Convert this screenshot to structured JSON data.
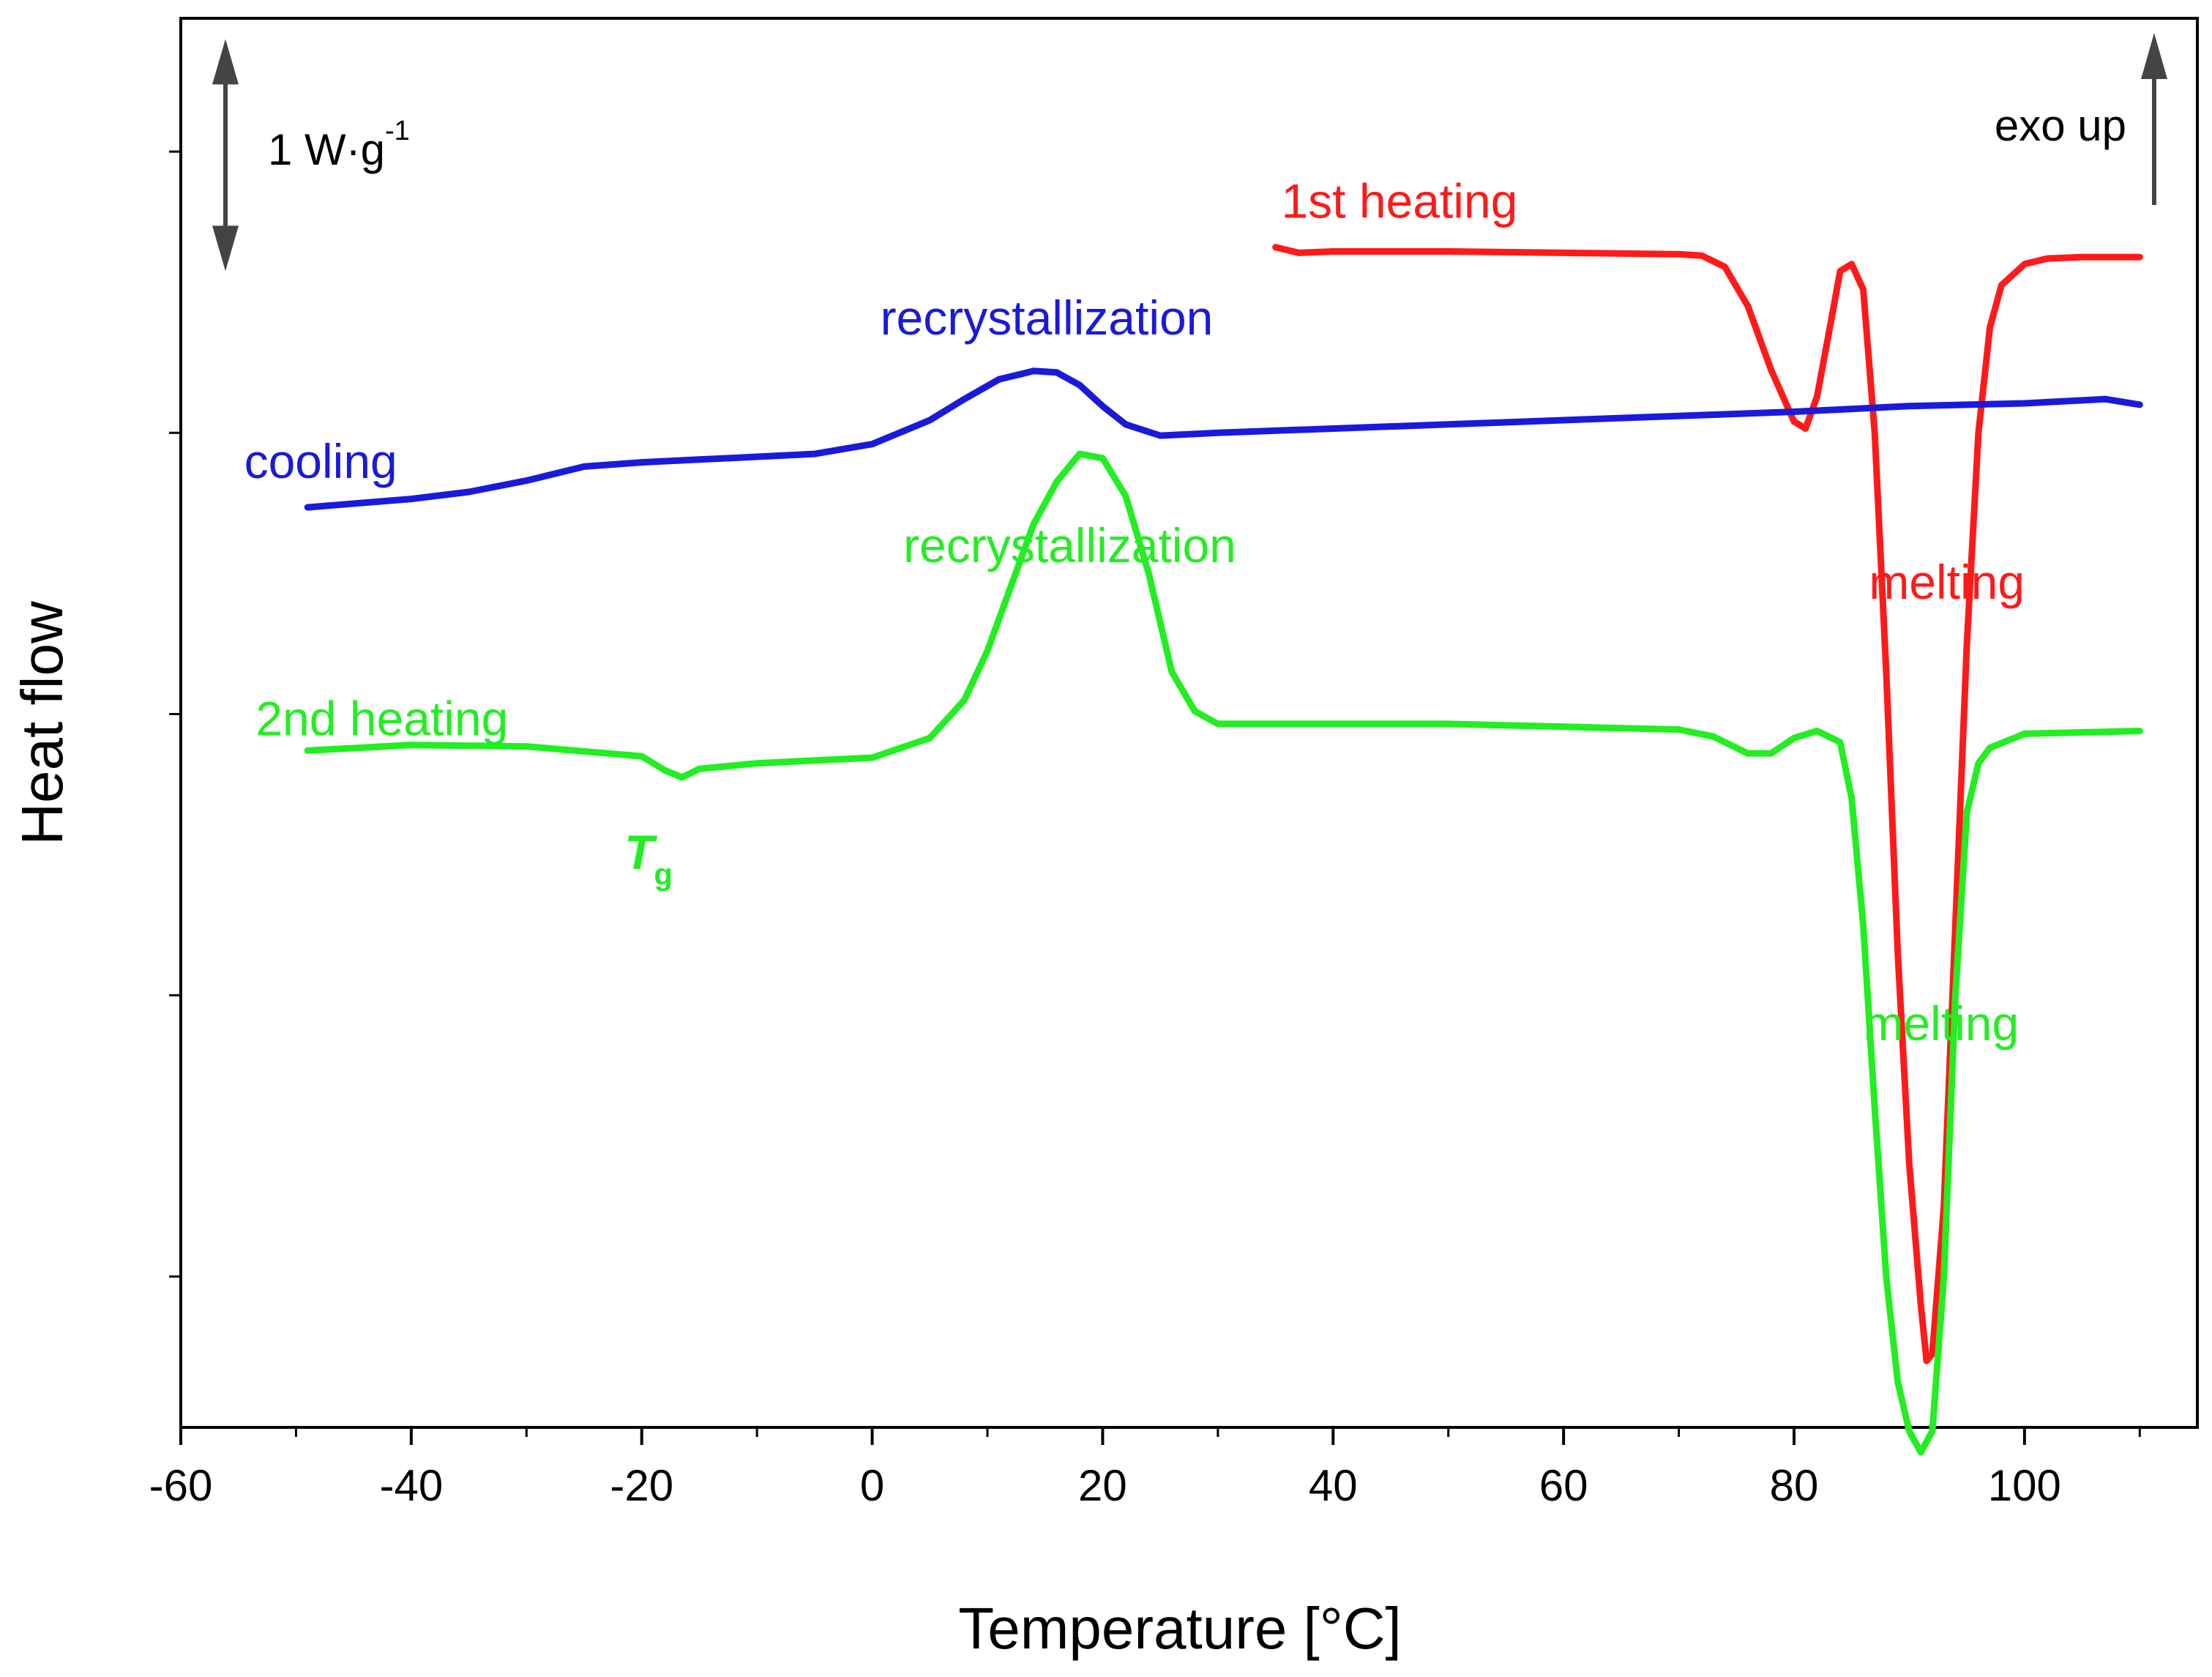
{
  "chart_data": {
    "type": "line",
    "xlabel": "Temperature [°C]",
    "ylabel": "Heat flow",
    "xlim": [
      -60,
      115
    ],
    "ylim": [
      0,
      100
    ],
    "x_ticks": [
      -60,
      -40,
      -20,
      0,
      20,
      40,
      60,
      80,
      100
    ],
    "y_ticks_labeled": false,
    "grid": false,
    "scale_bar": {
      "label_main": "1 W·g",
      "label_sup": "-1",
      "span": 16.5
    },
    "exo_label": "exo up",
    "colors": {
      "first_heating": "#ff1a1a",
      "cooling": "#1a1adb",
      "second_heating": "#22ee22"
    },
    "series": [
      {
        "name": "1st heating",
        "color": "#ff1a1a",
        "x": [
          35,
          37,
          40,
          50,
          60,
          70,
          72,
          74,
          76,
          78,
          80,
          81,
          82,
          83,
          84,
          85,
          86,
          87,
          88,
          89,
          90,
          91,
          91.5,
          92,
          93,
          94,
          95,
          96,
          97,
          98,
          100,
          102,
          105,
          110
        ],
        "y": [
          83.2,
          82.8,
          82.9,
          82.9,
          82.8,
          82.7,
          82.6,
          81.8,
          79.0,
          74.5,
          70.8,
          70.3,
          72.6,
          77.0,
          81.5,
          82.0,
          80.2,
          70.0,
          53.0,
          33.0,
          18.0,
          8.0,
          4.0,
          4.5,
          15.0,
          35.0,
          55.0,
          70.0,
          77.5,
          80.5,
          82.0,
          82.4,
          82.5,
          82.5
        ]
      },
      {
        "name": "cooling",
        "color": "#1a1adb",
        "x": [
          -49,
          -40,
          -35,
          -30,
          -25,
          -20,
          -15,
          -10,
          -5,
          0,
          5,
          8,
          11,
          14,
          16,
          18,
          20,
          22,
          25,
          30,
          40,
          50,
          60,
          70,
          80,
          90,
          100,
          107,
          110
        ],
        "y": [
          64.7,
          65.3,
          65.8,
          66.6,
          67.6,
          67.9,
          68.1,
          68.3,
          68.5,
          69.2,
          70.9,
          72.4,
          73.8,
          74.4,
          74.3,
          73.4,
          71.9,
          70.6,
          69.8,
          70.0,
          70.3,
          70.6,
          70.9,
          71.2,
          71.5,
          71.9,
          72.1,
          72.4,
          72.0
        ]
      },
      {
        "name": "2nd heating",
        "color": "#22ee22",
        "x": [
          -49,
          -40,
          -30,
          -20,
          -18,
          -16.5,
          -15,
          -10,
          0,
          5,
          8,
          10,
          12,
          14,
          16,
          18,
          20,
          22,
          24,
          26,
          28,
          30,
          40,
          50,
          60,
          70,
          73,
          76,
          78,
          80,
          82,
          84,
          85,
          86,
          87,
          88,
          89,
          90,
          91,
          92,
          93,
          94,
          95,
          96,
          97,
          100,
          105,
          110
        ],
        "y": [
          47.4,
          47.8,
          47.7,
          47.0,
          46.0,
          45.5,
          46.1,
          46.5,
          46.9,
          48.3,
          51.0,
          54.5,
          59.0,
          63.5,
          66.5,
          68.5,
          68.2,
          65.5,
          60.0,
          53.0,
          50.2,
          49.3,
          49.3,
          49.3,
          49.1,
          48.9,
          48.4,
          47.2,
          47.2,
          48.3,
          48.8,
          48.0,
          44.0,
          35.0,
          22.0,
          10.0,
          2.5,
          -1.0,
          -2.5,
          -1.0,
          10.0,
          30.0,
          43.0,
          46.5,
          47.6,
          48.6,
          48.7,
          48.8
        ]
      }
    ],
    "annotations": [
      {
        "text": "1st heating",
        "color": "#ff1a1a",
        "x": 35.5,
        "y": 85.3
      },
      {
        "text": "melting",
        "color": "#ff1a1a",
        "x": 86.5,
        "y": 58.2
      },
      {
        "text": "cooling",
        "color": "#1a1adb",
        "x": 43.5,
        "y": 66.8,
        "xdata": -54.5
      },
      {
        "text": "recrystallization",
        "color": "#1a1adb",
        "x": 0.7,
        "y": 77.0
      },
      {
        "text": "recrystallization",
        "color": "#22ee22",
        "x": 2.7,
        "y": 60.8
      },
      {
        "text": "2nd heating",
        "color": "#22ee22",
        "x": -53.5,
        "y": 48.5
      },
      {
        "text": "melting",
        "color": "#22ee22",
        "x": 86.0,
        "y": 26.8
      }
    ],
    "tg_label": {
      "main": "T",
      "sub": "g",
      "color": "#22ee22",
      "x": -21.5,
      "y": 39.0
    }
  }
}
